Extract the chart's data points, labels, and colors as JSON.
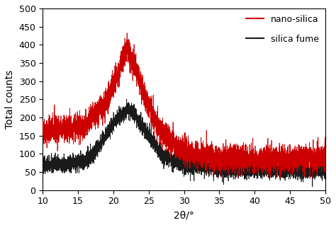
{
  "xlabel": "2θ/°",
  "ylabel": "Total counts",
  "xlim": [
    10,
    50
  ],
  "ylim": [
    0,
    500
  ],
  "xticks": [
    10,
    15,
    20,
    25,
    30,
    35,
    40,
    45,
    50
  ],
  "yticks": [
    0,
    50,
    100,
    150,
    200,
    250,
    300,
    350,
    400,
    450,
    500
  ],
  "nano_color": "#cc0000",
  "silica_color": "#1a1a1a",
  "legend_labels": [
    "nano-silica",
    "silica fume"
  ],
  "seed": 42,
  "nano_knots_x": [
    10,
    13,
    16,
    19,
    21,
    22,
    23,
    25,
    27,
    30,
    35,
    40,
    45,
    50
  ],
  "nano_knots_y": [
    162,
    168,
    175,
    240,
    340,
    390,
    340,
    230,
    155,
    105,
    88,
    85,
    88,
    90
  ],
  "silica_knots_x": [
    10,
    13,
    16,
    18,
    20,
    22,
    23,
    25,
    27,
    30,
    35,
    40,
    45,
    50
  ],
  "silica_knots_y": [
    68,
    72,
    80,
    120,
    185,
    225,
    210,
    150,
    95,
    68,
    58,
    55,
    54,
    52
  ],
  "nano_noise_scale": 18,
  "silica_noise_scale": 11,
  "linewidth": 0.55,
  "figsize": [
    4.74,
    3.18
  ],
  "dpi": 100,
  "legend_fontsize": 9,
  "xlabel_fontsize": 10,
  "ylabel_fontsize": 10,
  "tick_labelsize": 9
}
